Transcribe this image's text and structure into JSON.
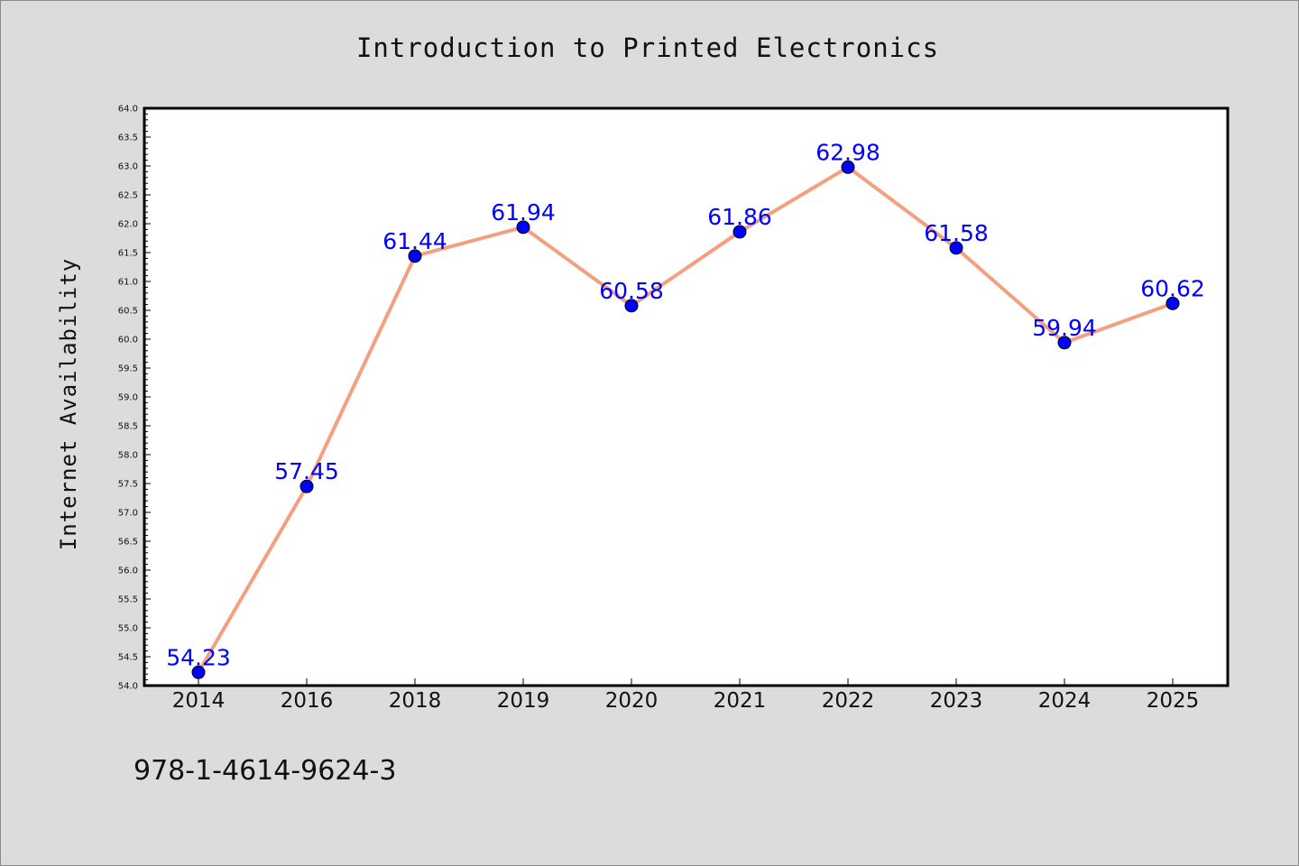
{
  "footer": {
    "isbn": "978-1-4614-9624-3"
  },
  "chart_data": {
    "type": "line",
    "title": "Introduction to Printed Electronics",
    "xlabel": "",
    "ylabel": "Internet Availability",
    "categories": [
      "2014",
      "2016",
      "2018",
      "2019",
      "2020",
      "2021",
      "2022",
      "2023",
      "2024",
      "2025"
    ],
    "series": [
      {
        "values": [
          54.23,
          57.45,
          61.44,
          61.94,
          60.58,
          61.86,
          62.98,
          61.58,
          59.94,
          60.62
        ],
        "labels": [
          "54.23",
          "57.45",
          "61.44",
          "61.94",
          "60.58",
          "61.86",
          "62.98",
          "61.58",
          "59.94",
          "60.62"
        ],
        "line_color": "#f4a07f",
        "marker_color": "#0000ff"
      }
    ],
    "ylim": [
      54.0,
      64.0
    ],
    "y_ticks": [
      "54.0",
      "54.5",
      "55.0",
      "55.5",
      "56.0",
      "56.5",
      "57.0",
      "57.5",
      "58.0",
      "58.5",
      "59.0",
      "59.5",
      "60.0",
      "60.5",
      "61.0",
      "61.5",
      "62.0",
      "62.5",
      "63.0",
      "63.5",
      "64.0"
    ],
    "grid": false,
    "legend": "none"
  }
}
